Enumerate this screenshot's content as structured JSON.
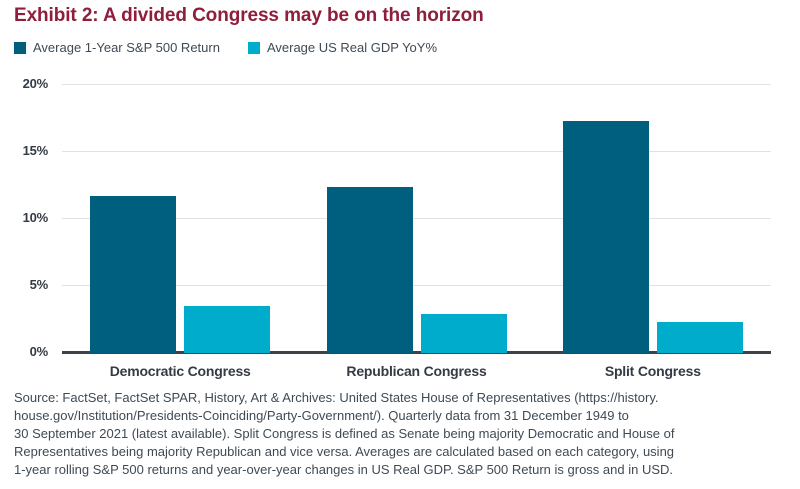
{
  "title": "Exhibit 2: A divided Congress may be on the horizon",
  "legend": {
    "items": [
      {
        "label": "Average 1-Year S&P 500 Return",
        "color": "#005f7f"
      },
      {
        "label": "Average US Real GDP YoY%",
        "color": "#00accb"
      }
    ]
  },
  "source": {
    "lines": [
      "Source: FactSet, FactSet SPAR, History, Art & Archives: United States House of Representatives (https://history.",
      "house.gov/Institution/Presidents-Coinciding/Party-Government/). Quarterly data from 31 December 1949 to",
      "30 September 2021 (latest available). Split Congress is defined as Senate being majority Democratic and House of",
      "Representatives being majority Republican and vice versa. Averages are calculated based on each category, using",
      "1-year rolling S&P 500 returns and year-over-year changes in US Real GDP. S&P 500 Return is gross and in USD."
    ]
  },
  "colors": {
    "title": "#8e1e3c",
    "axis_text": "#343b44",
    "legend_text": "#3e4a54",
    "source_text": "#3f4a54",
    "gridline": "#e2e2e2",
    "baseline": "#3e4347",
    "background": "#ffffff"
  },
  "chart_data": {
    "type": "bar",
    "title": "Exhibit 2: A divided Congress may be on the horizon",
    "categories": [
      "Democratic Congress",
      "Republican Congress",
      "Split Congress"
    ],
    "series": [
      {
        "name": "Average 1-Year S&P 500 Return",
        "color": "#005f7f",
        "values": [
          11.7,
          12.4,
          17.3
        ]
      },
      {
        "name": "Average US Real GDP YoY%",
        "color": "#00accb",
        "values": [
          3.5,
          2.9,
          2.3
        ]
      }
    ],
    "xlabel": "",
    "ylabel": "",
    "ylim": [
      0,
      20
    ],
    "yticks": [
      {
        "value": 0,
        "label": "0%"
      },
      {
        "value": 5,
        "label": "5%"
      },
      {
        "value": 10,
        "label": "10%"
      },
      {
        "value": 15,
        "label": "15%"
      },
      {
        "value": 20,
        "label": "20%"
      }
    ],
    "grid": "horizontal",
    "legend_position": "top-left"
  }
}
